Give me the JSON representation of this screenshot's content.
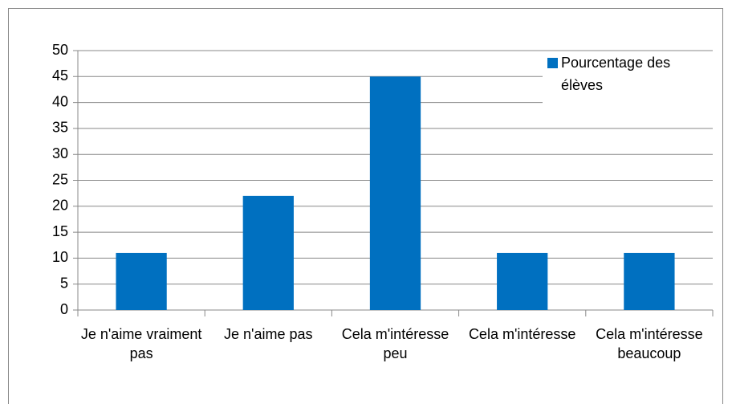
{
  "chart_data": {
    "type": "bar",
    "categories": [
      "Je n'aime vraiment pas",
      "Je n'aime pas",
      "Cela m'intéresse peu",
      "Cela m'intéresse",
      "Cela m'intéresse beaucoup"
    ],
    "series": [
      {
        "name": "Pourcentage des élèves",
        "color": "#0070c0",
        "values": [
          11,
          22,
          45,
          11,
          11
        ]
      }
    ],
    "ylim": [
      0,
      50
    ],
    "yticks": [
      0,
      5,
      10,
      15,
      20,
      25,
      30,
      35,
      40,
      45,
      50
    ],
    "grid": true,
    "legend": "top-right"
  }
}
